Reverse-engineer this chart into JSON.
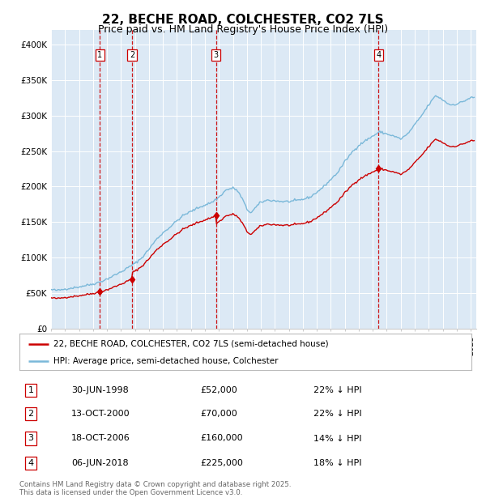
{
  "title": "22, BECHE ROAD, COLCHESTER, CO2 7LS",
  "subtitle": "Price paid vs. HM Land Registry's House Price Index (HPI)",
  "ylim": [
    0,
    420000
  ],
  "yticks": [
    0,
    50000,
    100000,
    150000,
    200000,
    250000,
    300000,
    350000,
    400000
  ],
  "ytick_labels": [
    "£0",
    "£50K",
    "£100K",
    "£150K",
    "£200K",
    "£250K",
    "£300K",
    "£350K",
    "£400K"
  ],
  "background_color": "#ffffff",
  "plot_bg_color": "#dce9f5",
  "grid_color": "#ffffff",
  "hpi_color": "#7ab8d9",
  "price_color": "#cc0000",
  "purchase_year_floats": [
    1998.5,
    2000.79,
    2006.8,
    2018.42
  ],
  "purchase_prices": [
    52000,
    70000,
    160000,
    225000
  ],
  "purchase_labels": [
    "1",
    "2",
    "3",
    "4"
  ],
  "vline_color": "#cc0000",
  "legend_label_red": "22, BECHE ROAD, COLCHESTER, CO2 7LS (semi-detached house)",
  "legend_label_blue": "HPI: Average price, semi-detached house, Colchester",
  "table_rows": [
    [
      "1",
      "30-JUN-1998",
      "£52,000",
      "22% ↓ HPI"
    ],
    [
      "2",
      "13-OCT-2000",
      "£70,000",
      "22% ↓ HPI"
    ],
    [
      "3",
      "18-OCT-2006",
      "£160,000",
      "14% ↓ HPI"
    ],
    [
      "4",
      "06-JUN-2018",
      "£225,000",
      "18% ↓ HPI"
    ]
  ],
  "footer_text": "Contains HM Land Registry data © Crown copyright and database right 2025.\nThis data is licensed under the Open Government Licence v3.0.",
  "title_fontsize": 11,
  "subtitle_fontsize": 9,
  "tick_fontsize": 7.5
}
